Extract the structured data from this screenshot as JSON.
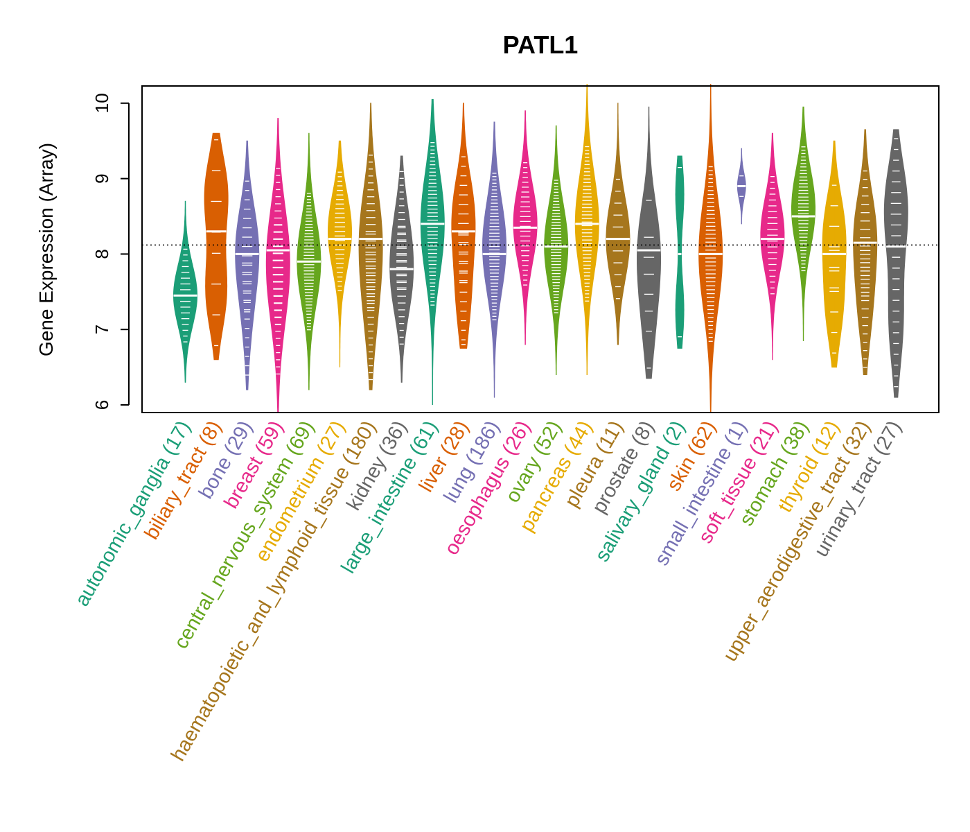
{
  "chart_data": {
    "type": "beanplot",
    "title": "PATL1",
    "xlabel": "",
    "ylabel": "Gene Expression (Array)",
    "ylim": [
      5.9,
      10.25
    ],
    "yticks": [
      6,
      7,
      8,
      9,
      10
    ],
    "reference_line": 8.12,
    "grid": false,
    "categories": [
      {
        "name": "autonomic_ganglia",
        "n": 17,
        "label": "autonomic_ganglia (17)",
        "color": "#1B9E77",
        "min": 6.3,
        "max": 8.7,
        "median": 7.45,
        "modes": [
          [
            7.45,
            1.0
          ]
        ]
      },
      {
        "name": "biliary_tract",
        "n": 8,
        "label": "biliary_tract (8)",
        "color": "#D95F02",
        "min": 6.6,
        "max": 9.6,
        "median": 8.3,
        "modes": [
          [
            7.5,
            0.9
          ],
          [
            8.8,
            1.0
          ]
        ]
      },
      {
        "name": "bone",
        "n": 29,
        "label": "bone (29)",
        "color": "#7570B3",
        "min": 6.2,
        "max": 9.5,
        "median": 8.0,
        "modes": [
          [
            8.1,
            1.0
          ],
          [
            7.2,
            0.35
          ]
        ]
      },
      {
        "name": "breast",
        "n": 59,
        "label": "breast (59)",
        "color": "#E7298A",
        "min": 5.9,
        "max": 9.8,
        "median": 8.05,
        "modes": [
          [
            8.1,
            1.0
          ],
          [
            7.4,
            0.6
          ]
        ]
      },
      {
        "name": "central_nervous_system",
        "n": 69,
        "label": "central_nervous_system (69)",
        "color": "#66A61E",
        "min": 6.2,
        "max": 9.6,
        "median": 7.9,
        "modes": [
          [
            7.9,
            1.0
          ]
        ]
      },
      {
        "name": "endometrium",
        "n": 27,
        "label": "endometrium (27)",
        "color": "#E6AB02",
        "min": 6.5,
        "max": 9.5,
        "median": 8.2,
        "modes": [
          [
            8.3,
            1.0
          ]
        ]
      },
      {
        "name": "haematopoietic_and_lymphoid_tissue",
        "n": 180,
        "label": "haematopoietic_and_lymphoid_tissue (180)",
        "color": "#A6761D",
        "min": 6.2,
        "max": 10.0,
        "median": 8.2,
        "modes": [
          [
            8.3,
            1.0
          ],
          [
            7.3,
            0.55
          ]
        ]
      },
      {
        "name": "kidney",
        "n": 36,
        "label": "kidney (36)",
        "color": "#666666",
        "min": 6.3,
        "max": 9.3,
        "median": 7.8,
        "modes": [
          [
            7.6,
            1.0
          ],
          [
            8.3,
            0.7
          ]
        ]
      },
      {
        "name": "large_intestine",
        "n": 61,
        "label": "large_intestine (61)",
        "color": "#1B9E77",
        "min": 6.0,
        "max": 10.05,
        "median": 8.4,
        "modes": [
          [
            8.4,
            1.0
          ]
        ]
      },
      {
        "name": "liver",
        "n": 28,
        "label": "liver (28)",
        "color": "#D95F02",
        "min": 6.75,
        "max": 10.0,
        "median": 8.3,
        "modes": [
          [
            8.5,
            1.0
          ],
          [
            7.4,
            0.6
          ]
        ]
      },
      {
        "name": "lung",
        "n": 186,
        "label": "lung (186)",
        "color": "#7570B3",
        "min": 6.1,
        "max": 9.75,
        "median": 8.0,
        "modes": [
          [
            8.1,
            1.0
          ]
        ]
      },
      {
        "name": "oesophagus",
        "n": 26,
        "label": "oesophagus (26)",
        "color": "#E7298A",
        "min": 6.8,
        "max": 9.9,
        "median": 8.35,
        "modes": [
          [
            8.4,
            1.0
          ]
        ]
      },
      {
        "name": "ovary",
        "n": 52,
        "label": "ovary (52)",
        "color": "#66A61E",
        "min": 6.4,
        "max": 9.7,
        "median": 8.1,
        "modes": [
          [
            8.1,
            1.0
          ]
        ]
      },
      {
        "name": "pancreas",
        "n": 44,
        "label": "pancreas (44)",
        "color": "#E6AB02",
        "min": 6.4,
        "max": 10.25,
        "median": 8.4,
        "modes": [
          [
            8.4,
            1.0
          ]
        ]
      },
      {
        "name": "pleura",
        "n": 11,
        "label": "pleura (11)",
        "color": "#A6761D",
        "min": 6.8,
        "max": 10.0,
        "median": 8.2,
        "modes": [
          [
            8.2,
            1.0
          ]
        ]
      },
      {
        "name": "prostate",
        "n": 8,
        "label": "prostate (8)",
        "color": "#666666",
        "min": 6.35,
        "max": 9.95,
        "median": 8.05,
        "modes": [
          [
            8.1,
            1.0
          ],
          [
            7.1,
            0.5
          ]
        ]
      },
      {
        "name": "salivary_gland",
        "n": 2,
        "label": "salivary_gland (2)",
        "color": "#1B9E77",
        "min": 6.75,
        "max": 9.3,
        "median": 8.0,
        "modes": [
          [
            7.25,
            0.45
          ],
          [
            8.8,
            0.45
          ]
        ]
      },
      {
        "name": "skin",
        "n": 62,
        "label": "skin (62)",
        "color": "#D95F02",
        "min": 5.9,
        "max": 10.25,
        "median": 8.0,
        "modes": [
          [
            8.0,
            1.0
          ]
        ]
      },
      {
        "name": "small_intestine",
        "n": 1,
        "label": "small_intestine (1)",
        "color": "#7570B3",
        "min": 8.4,
        "max": 9.4,
        "median": 8.9,
        "modes": [
          [
            8.9,
            0.3
          ]
        ]
      },
      {
        "name": "soft_tissue",
        "n": 21,
        "label": "soft_tissue (21)",
        "color": "#E7298A",
        "min": 6.6,
        "max": 9.6,
        "median": 8.2,
        "modes": [
          [
            8.25,
            1.0
          ]
        ]
      },
      {
        "name": "stomach",
        "n": 38,
        "label": "stomach (38)",
        "color": "#66A61E",
        "min": 6.85,
        "max": 9.95,
        "median": 8.5,
        "modes": [
          [
            8.6,
            1.0
          ]
        ]
      },
      {
        "name": "thyroid",
        "n": 12,
        "label": "thyroid (12)",
        "color": "#E6AB02",
        "min": 6.5,
        "max": 9.5,
        "median": 8.0,
        "modes": [
          [
            8.3,
            0.9
          ],
          [
            7.3,
            0.7
          ]
        ]
      },
      {
        "name": "upper_aerodigestive_tract",
        "n": 32,
        "label": "upper_aerodigestive_tract (32)",
        "color": "#A6761D",
        "min": 6.4,
        "max": 9.65,
        "median": 8.15,
        "modes": [
          [
            8.3,
            1.0
          ],
          [
            7.3,
            0.6
          ]
        ]
      },
      {
        "name": "urinary_tract",
        "n": 27,
        "label": "urinary_tract (27)",
        "color": "#666666",
        "min": 6.1,
        "max": 9.65,
        "median": 8.1,
        "modes": [
          [
            8.6,
            1.0
          ],
          [
            7.1,
            0.6
          ]
        ]
      }
    ]
  }
}
